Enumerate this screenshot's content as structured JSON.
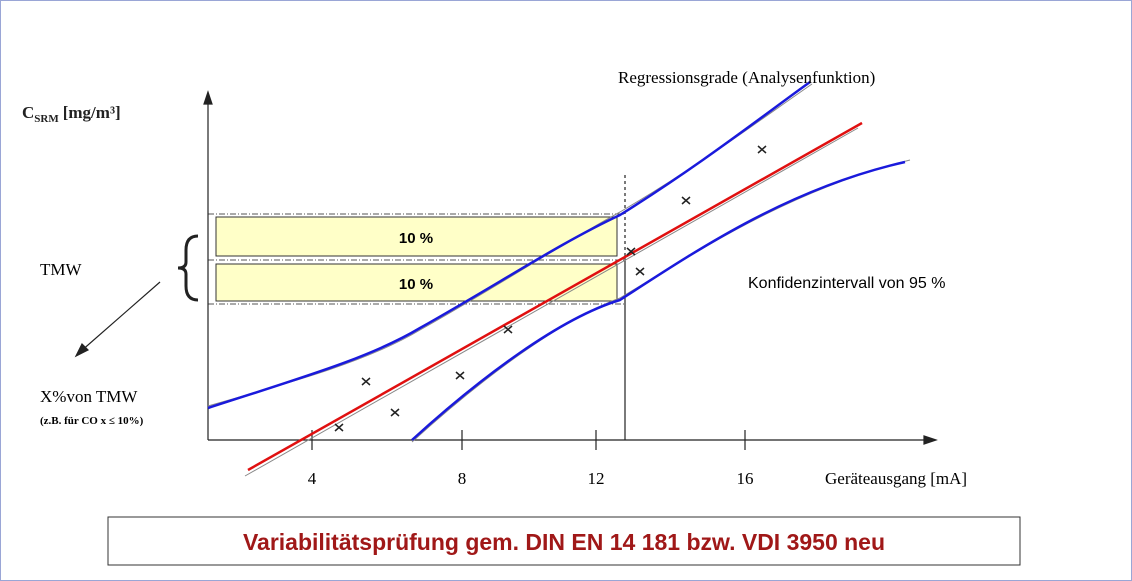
{
  "diagram": {
    "regression_label": "Regressionsgrade (Analysenfunktion)",
    "y_label": {
      "main": "C",
      "sub": "SRM",
      "unit": "[mg/m³]"
    },
    "tmw": "TMW",
    "x_percent": "X%von TMW",
    "example": "(z.B. für CO x ≤ 10%)",
    "box_labels": [
      "10 %",
      "10 %"
    ],
    "confidence": "Konfidenzintervall von 95 %",
    "x_ticks": [
      "4",
      "8",
      "12",
      "16"
    ],
    "x_label": "Geräteausgang [mA]",
    "caption": "Variabilitätsprüfung gem.  DIN EN 14 181 bzw. VDI 3950 neu"
  }
}
